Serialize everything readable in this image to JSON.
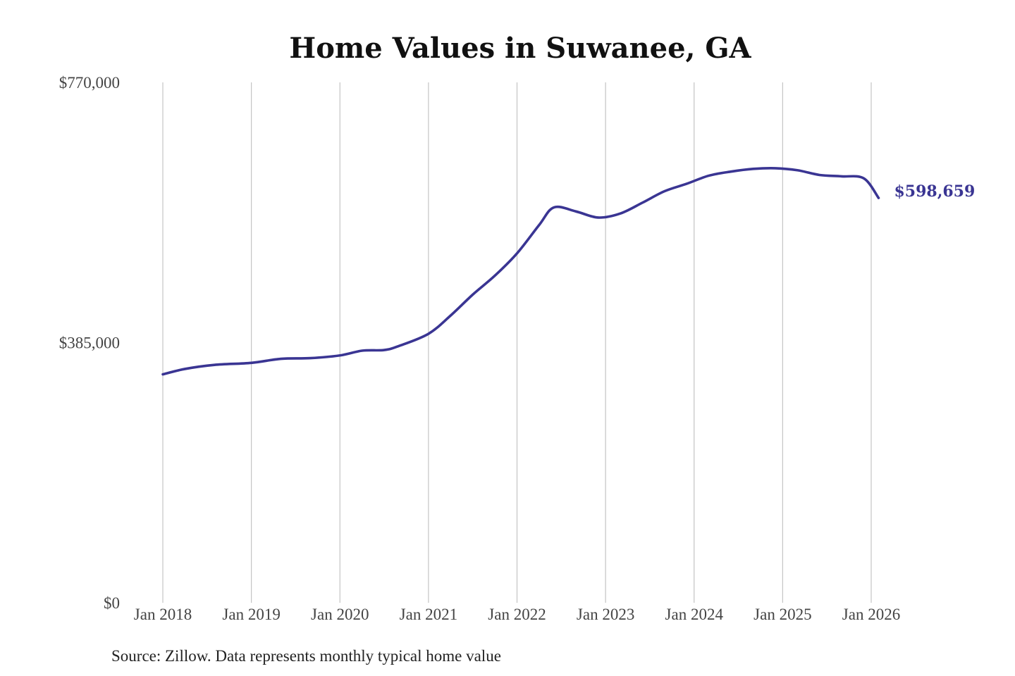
{
  "chart_data": {
    "type": "line",
    "title": "Home Values in Suwanee, GA",
    "xlabel": "",
    "ylabel": "",
    "x_start": "Jan 2018",
    "x_end": "Jan 2026",
    "ylim": [
      0,
      770000
    ],
    "y_ticks": [
      {
        "value": 0,
        "label": "$0"
      },
      {
        "value": 385000,
        "label": "$385,000"
      },
      {
        "value": 770000,
        "label": "$770,000"
      }
    ],
    "x_ticks": [
      {
        "date": "2018-01",
        "label": "Jan 2018"
      },
      {
        "date": "2019-01",
        "label": "Jan 2019"
      },
      {
        "date": "2020-01",
        "label": "Jan 2020"
      },
      {
        "date": "2021-01",
        "label": "Jan 2021"
      },
      {
        "date": "2022-01",
        "label": "Jan 2022"
      },
      {
        "date": "2023-01",
        "label": "Jan 2023"
      },
      {
        "date": "2024-01",
        "label": "Jan 2024"
      },
      {
        "date": "2025-01",
        "label": "Jan 2025"
      },
      {
        "date": "2026-01",
        "label": "Jan 2026"
      }
    ],
    "grid": {
      "vertical": true,
      "horizontal": false
    },
    "colors": {
      "line": "#3a3593",
      "grid": "#c4c4c4"
    },
    "series": [
      {
        "end_label": "$598,659",
        "x": [
          "2018-01",
          "2018-04",
          "2018-08",
          "2019-01",
          "2019-05",
          "2019-09",
          "2020-01",
          "2020-04",
          "2020-07",
          "2020-09",
          "2021-01",
          "2021-04",
          "2021-07",
          "2021-10",
          "2022-01",
          "2022-04",
          "2022-06",
          "2022-09",
          "2022-12",
          "2023-03",
          "2023-06",
          "2023-09",
          "2023-12",
          "2024-03",
          "2024-06",
          "2024-09",
          "2024-12",
          "2025-03",
          "2025-06",
          "2025-09",
          "2025-12",
          "2026-02"
        ],
        "y": [
          338000,
          346000,
          352000,
          355000,
          361000,
          362000,
          366000,
          373000,
          374000,
          380000,
          398000,
          425000,
          456000,
          484000,
          517000,
          559000,
          585000,
          579000,
          570000,
          576000,
          592000,
          609000,
          620000,
          632000,
          638000,
          642000,
          643000,
          640000,
          633000,
          631000,
          628000,
          599000
        ]
      }
    ],
    "source": "Source: Zillow. Data represents monthly typical home value"
  }
}
